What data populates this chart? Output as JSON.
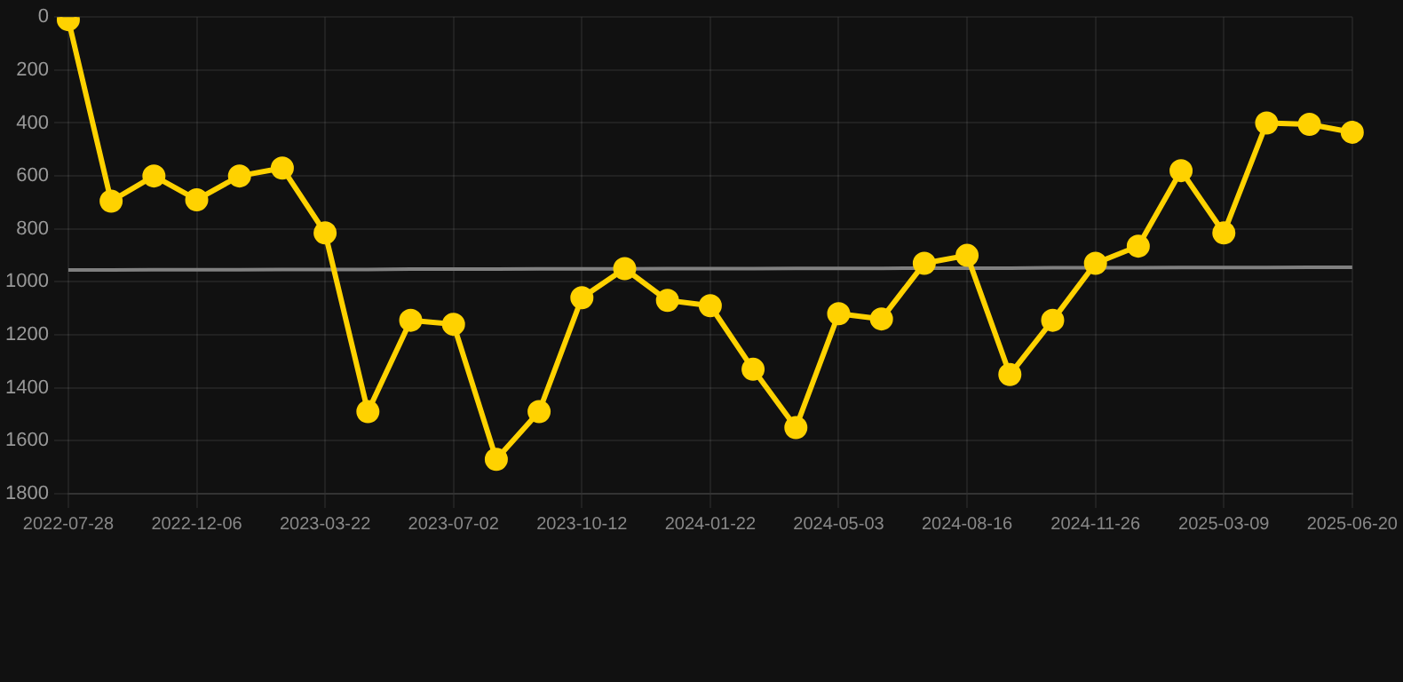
{
  "chart_data": {
    "type": "line",
    "categories": [
      "2022-07-28",
      null,
      null,
      "2022-12-06",
      null,
      null,
      "2023-03-22",
      null,
      null,
      "2023-07-02",
      null,
      null,
      "2023-10-12",
      null,
      null,
      "2024-01-22",
      null,
      null,
      "2024-05-03",
      null,
      null,
      "2024-08-16",
      null,
      null,
      "2024-11-26",
      null,
      null,
      "2025-03-09",
      null,
      null,
      "2025-06-20"
    ],
    "series": [
      {
        "color": "#ffd200",
        "marker": "circle",
        "values": [
          10,
          695,
          600,
          690,
          600,
          570,
          815,
          1490,
          1145,
          1160,
          1670,
          1490,
          1060,
          950,
          1070,
          1090,
          1330,
          1550,
          1120,
          1140,
          930,
          900,
          1350,
          1145,
          930,
          865,
          580,
          815,
          400,
          405,
          435
        ]
      },
      {
        "type": "line",
        "color": "#808080",
        "marker": "none",
        "values": [
          955,
          955,
          954,
          954,
          954,
          953,
          953,
          953,
          952,
          952,
          952,
          951,
          951,
          951,
          950,
          950,
          950,
          949,
          949,
          949,
          948,
          948,
          948,
          947,
          947,
          947,
          946,
          946,
          946,
          945,
          945
        ]
      }
    ],
    "ylim": [
      1800,
      0
    ],
    "yticks": [
      0,
      200,
      400,
      600,
      800,
      1000,
      1200,
      1400,
      1600,
      1800
    ],
    "grid": true,
    "legend": false
  }
}
